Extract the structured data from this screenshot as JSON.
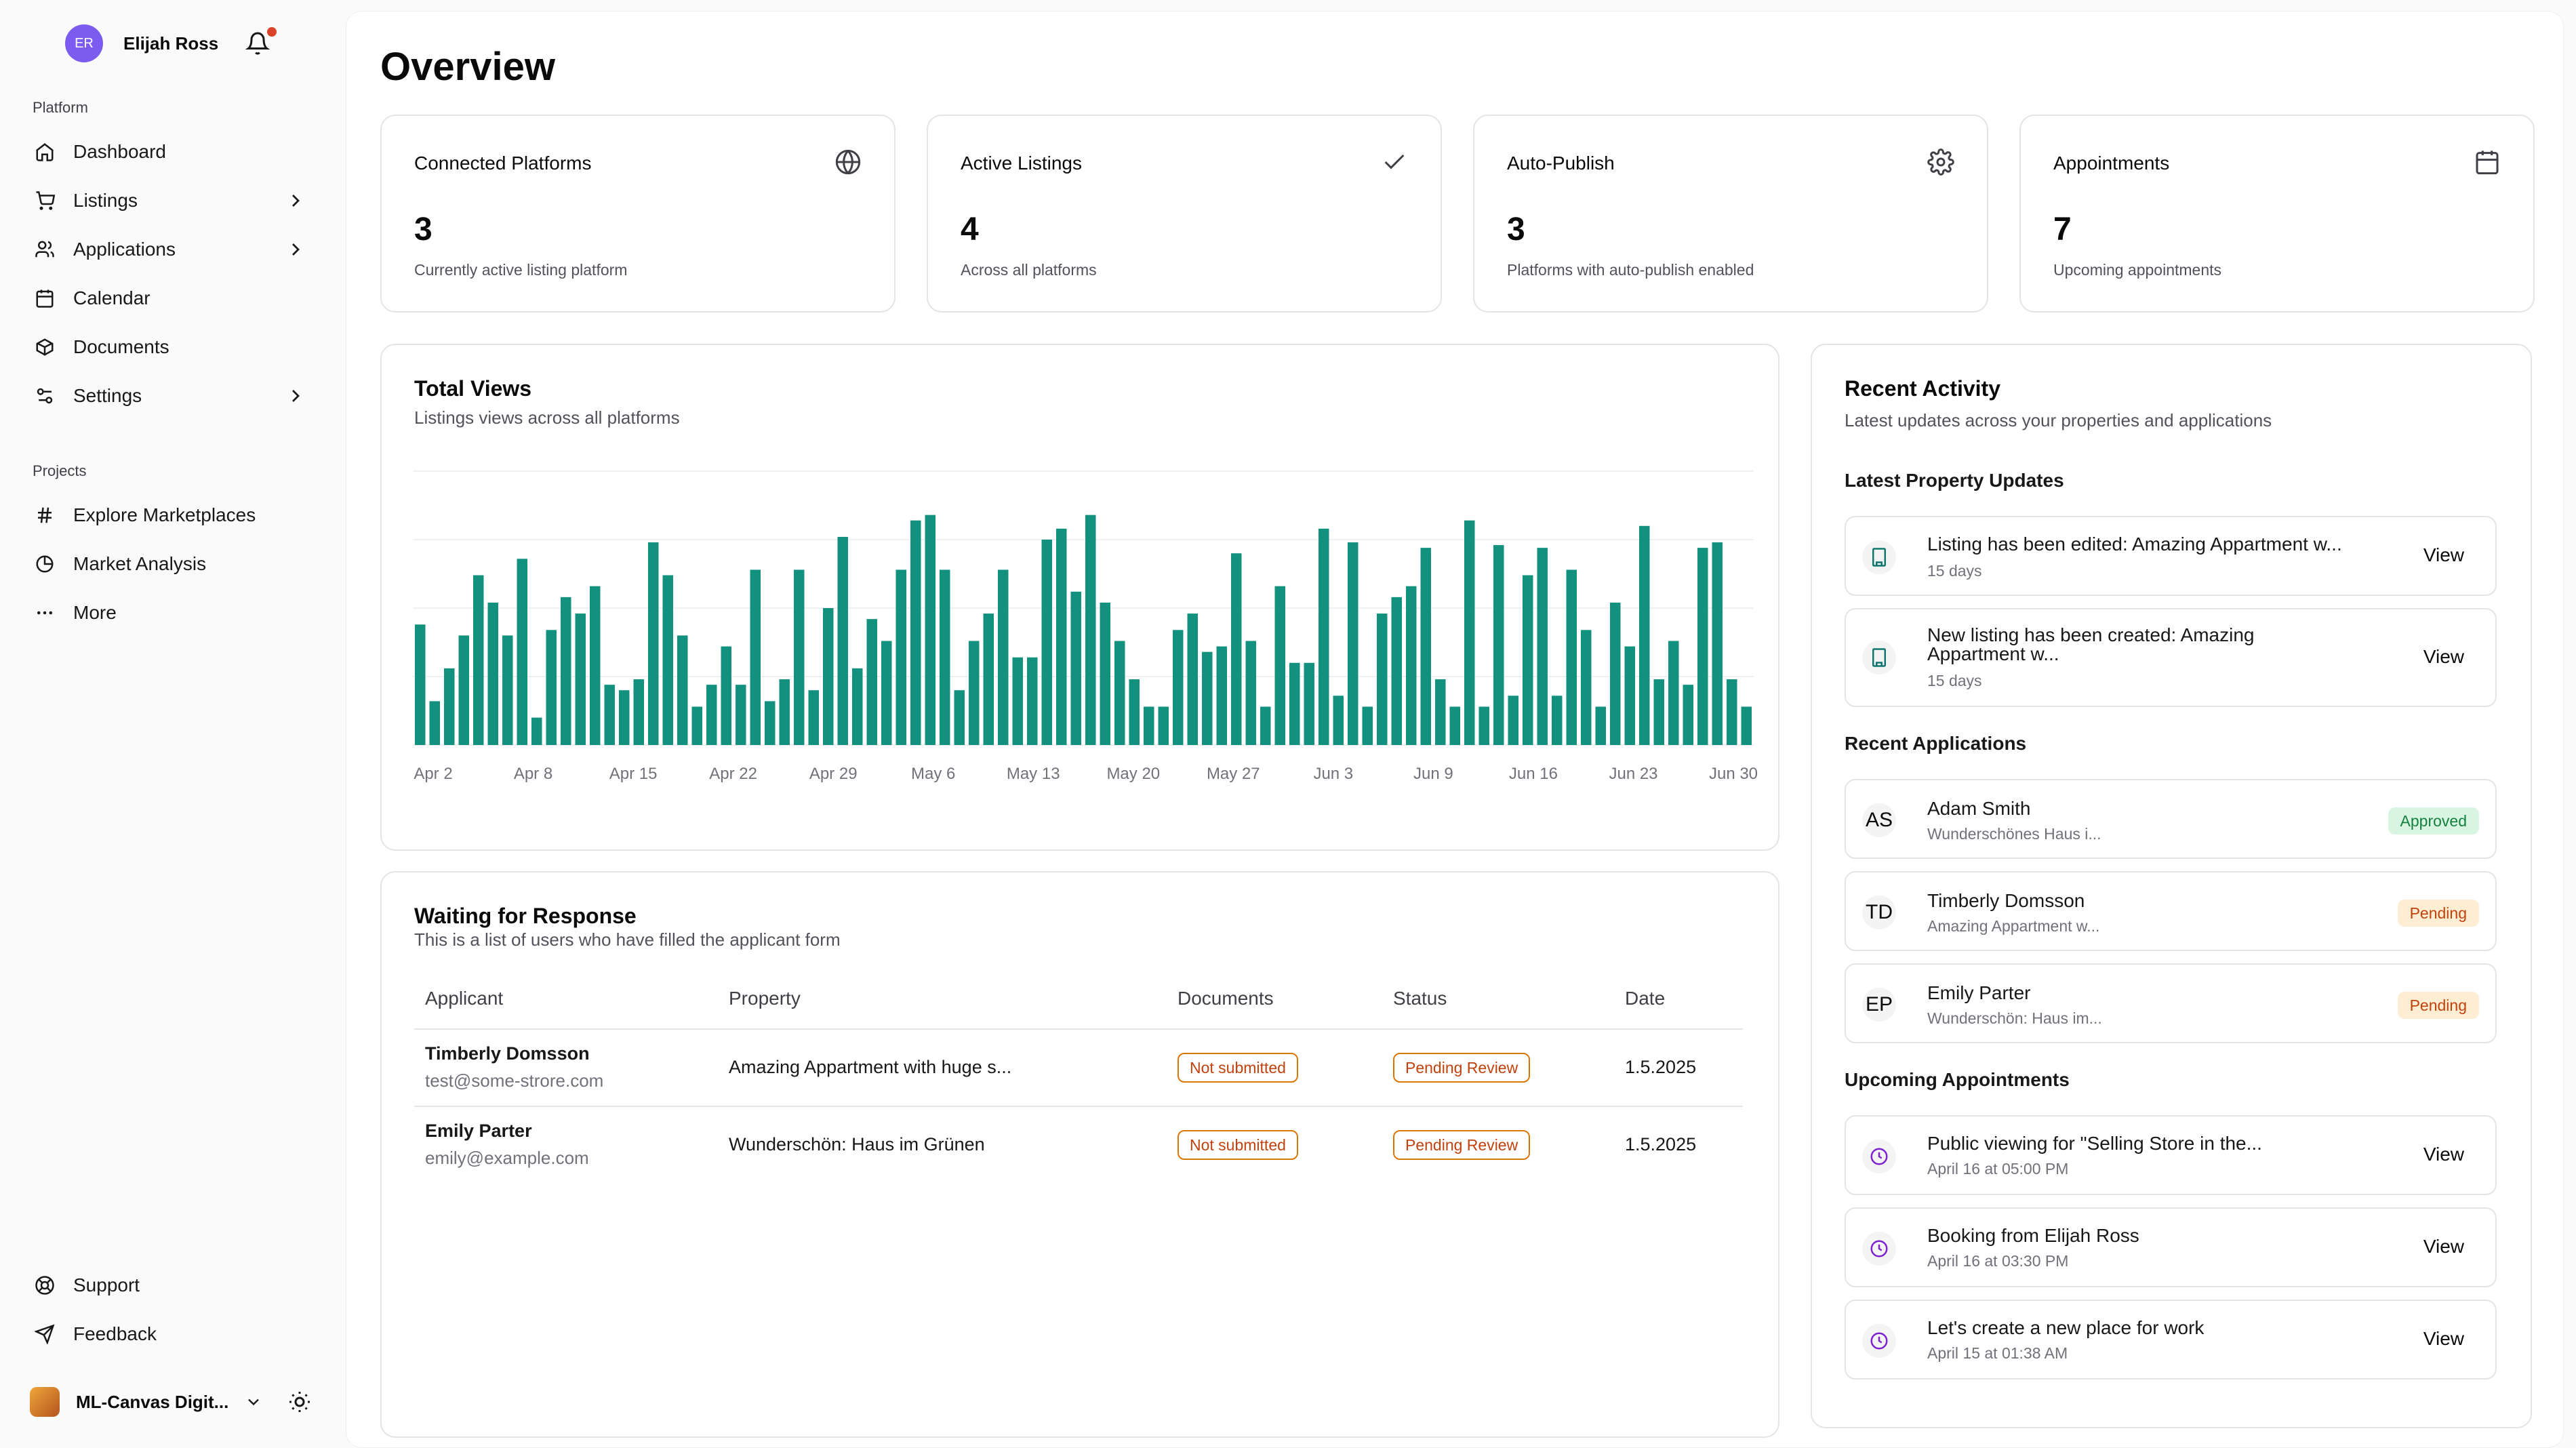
{
  "sidebar": {
    "user": {
      "initials": "ER",
      "name": "Elijah Ross"
    },
    "platform_label": "Platform",
    "platform_items": [
      {
        "label": "Dashboard",
        "icon": "home-icon"
      },
      {
        "label": "Listings",
        "icon": "cart-icon"
      },
      {
        "label": "Applications",
        "icon": "users-icon"
      },
      {
        "label": "Calendar",
        "icon": "calendar-icon"
      },
      {
        "label": "Documents",
        "icon": "box-icon"
      },
      {
        "label": "Settings",
        "icon": "sliders-icon"
      }
    ],
    "projects_label": "Projects",
    "project_items": [
      {
        "label": "Explore Marketplaces",
        "icon": "hash-icon"
      },
      {
        "label": "Market Analysis",
        "icon": "pie-icon"
      },
      {
        "label": "More",
        "icon": "dots-icon"
      }
    ],
    "bottom_items": [
      {
        "label": "Support",
        "icon": "lifebuoy-icon"
      },
      {
        "label": "Feedback",
        "icon": "send-icon"
      }
    ],
    "workspace": {
      "name": "ML-Canvas Digit..."
    }
  },
  "page_title": "Overview",
  "stats": [
    {
      "title": "Connected Platforms",
      "value": "3",
      "sub": "Currently active listing platform",
      "icon": "globe-icon"
    },
    {
      "title": "Active Listings",
      "value": "4",
      "sub": "Across all platforms",
      "icon": "check-icon"
    },
    {
      "title": "Auto-Publish",
      "value": "3",
      "sub": "Platforms with auto-publish enabled",
      "icon": "gear-icon"
    },
    {
      "title": "Appointments",
      "value": "7",
      "sub": "Upcoming appointments",
      "icon": "calendar-icon"
    }
  ],
  "views_card": {
    "title": "Total Views",
    "desc": "Listings views across all platforms"
  },
  "chart_data": {
    "type": "bar",
    "title": "Total Views",
    "color": "#12917f",
    "x_tick_labels": [
      "Apr 2",
      "Apr 8",
      "Apr 15",
      "Apr 22",
      "Apr 29",
      "May 6",
      "May 13",
      "May 20",
      "May 27",
      "Jun 3",
      "Jun 9",
      "Jun 16",
      "Jun 23",
      "Jun 30"
    ],
    "values": [
      44,
      16,
      28,
      40,
      62,
      52,
      40,
      68,
      10,
      42,
      54,
      48,
      58,
      22,
      20,
      24,
      74,
      62,
      40,
      14,
      22,
      36,
      22,
      64,
      16,
      24,
      64,
      20,
      50,
      76,
      28,
      46,
      38,
      64,
      82,
      84,
      64,
      20,
      38,
      48,
      64,
      32,
      32,
      75,
      79,
      56,
      84,
      52,
      38,
      24,
      14,
      14,
      42,
      48,
      34,
      36,
      70,
      38,
      14,
      58,
      30,
      30,
      79,
      18,
      74,
      14,
      48,
      54,
      58,
      72,
      24,
      14,
      82,
      14,
      73,
      18,
      62,
      72,
      18,
      64,
      42,
      14,
      52,
      36,
      80,
      24,
      38,
      22,
      72,
      74,
      24,
      14
    ],
    "ylim": [
      0,
      100
    ]
  },
  "table_card": {
    "title": "Waiting for Response",
    "desc": "This is a list of users who have filled the applicant form",
    "columns": [
      "Applicant",
      "Property",
      "Documents",
      "Status",
      "Date"
    ],
    "rows": [
      {
        "name": "Timberly Domsson",
        "email": "test@some-strore.com",
        "property": "Amazing Appartment with huge s...",
        "documents": "Not submitted",
        "status": "Pending Review",
        "date": "1.5.2025"
      },
      {
        "name": "Emily Parter",
        "email": "emily@example.com",
        "property": "Wunderschön: Haus im Grünen",
        "documents": "Not submitted",
        "status": "Pending Review",
        "date": "1.5.2025"
      }
    ]
  },
  "activity": {
    "title": "Recent Activity",
    "desc": "Latest updates across your properties and applications",
    "property_updates_label": "Latest Property Updates",
    "property_updates": [
      {
        "title": "Listing has been edited: Amazing Appartment w...",
        "sub": "15 days",
        "action": "View"
      },
      {
        "title_line1": "New listing has been created: Amazing",
        "title_line2": "Appartment w...",
        "sub": "15 days",
        "action": "View"
      }
    ],
    "applications_label": "Recent Applications",
    "applications": [
      {
        "initials": "AS",
        "name": "Adam Smith",
        "sub": "Wunderschönes Haus i...",
        "status": "Approved"
      },
      {
        "initials": "TD",
        "name": "Timberly Domsson",
        "sub": "Amazing Appartment w...",
        "status": "Pending"
      },
      {
        "initials": "EP",
        "name": "Emily Parter",
        "sub": "Wunderschön: Haus im...",
        "status": "Pending"
      }
    ],
    "appointments_label": "Upcoming Appointments",
    "appointments": [
      {
        "title": "Public viewing for \"Selling Store in the...",
        "sub": "April 16 at 05:00 PM",
        "action": "View"
      },
      {
        "title": "Booking from Elijah Ross",
        "sub": "April 16 at 03:30 PM",
        "action": "View"
      },
      {
        "title": "Let's create a new place for work",
        "sub": "April 15 at 01:38 AM",
        "action": "View"
      }
    ]
  }
}
